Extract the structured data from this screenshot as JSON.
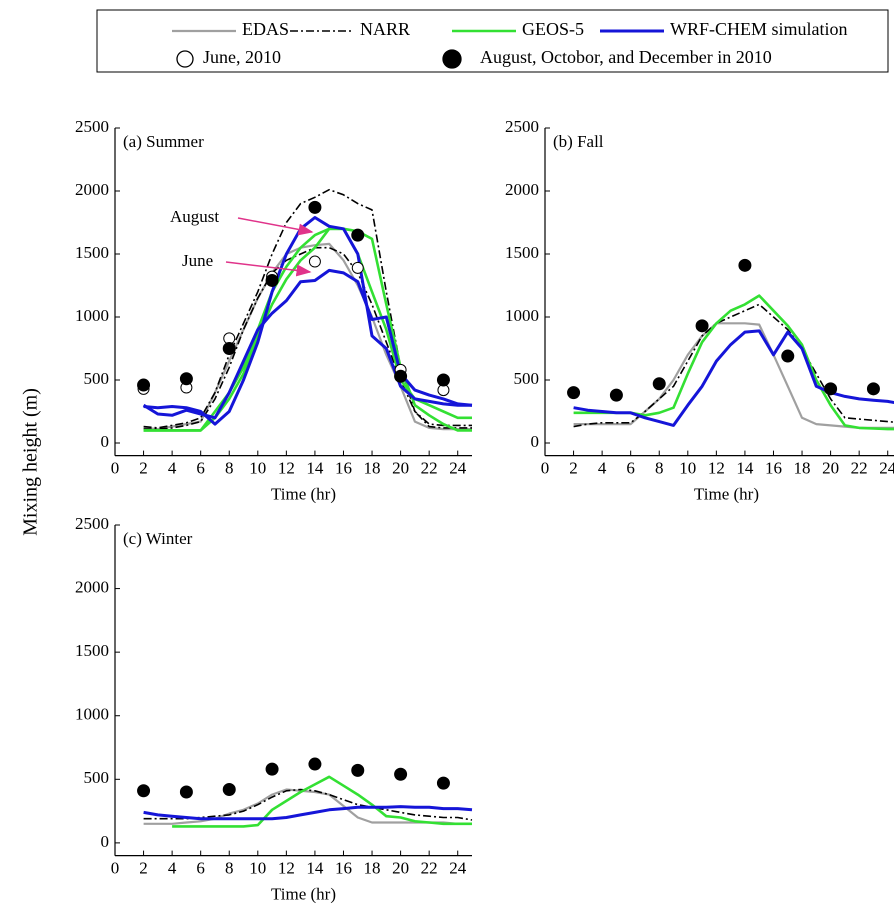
{
  "legend": [
    {
      "name": "EDAS",
      "color": "#a0a0a0",
      "style": "solid"
    },
    {
      "name": "NARR",
      "color": "#000000",
      "style": "dashdot"
    },
    {
      "name": "GEOS-5",
      "color": "#33e033",
      "style": "solid"
    },
    {
      "name": "WRF-CHEM simulation",
      "color": "#1515d8",
      "style": "solid"
    },
    {
      "name": "June, 2010",
      "marker": "open"
    },
    {
      "name": "August, Octobor, and December in 2010",
      "marker": "filled"
    }
  ],
  "ylabel": "Mixing height (m)",
  "chart_data": [
    {
      "type": "line",
      "title": "(a) Summer",
      "xlabel": "Time (hr)",
      "xlim": [
        0,
        25
      ],
      "xticks": [
        0,
        2,
        4,
        6,
        8,
        10,
        12,
        14,
        16,
        18,
        20,
        22,
        24
      ],
      "ylim": [
        -100,
        2500
      ],
      "yticks": [
        0,
        500,
        1000,
        1500,
        2000,
        2500
      ],
      "annotations": [
        {
          "text": "August"
        },
        {
          "text": "June"
        }
      ],
      "series": [
        {
          "name": "EDAS",
          "x": [
            2,
            3,
            4,
            5,
            6,
            7,
            8,
            9,
            10,
            11,
            12,
            13,
            14,
            15,
            16,
            17,
            18,
            19,
            20,
            21,
            22,
            23,
            24,
            25
          ],
          "values": [
            120,
            110,
            130,
            150,
            170,
            400,
            650,
            900,
            1150,
            1350,
            1500,
            1550,
            1570,
            1580,
            1450,
            1250,
            1000,
            700,
            450,
            170,
            120,
            110,
            110,
            110
          ]
        },
        {
          "name": "NARR",
          "x": [
            2,
            3,
            4,
            5,
            6,
            7,
            8,
            9,
            10,
            11,
            12,
            13,
            14,
            15,
            16,
            17,
            18,
            19,
            20,
            21,
            22,
            23,
            24,
            25
          ],
          "values": [
            130,
            120,
            140,
            160,
            200,
            400,
            700,
            950,
            1200,
            1500,
            1750,
            1900,
            1950,
            2010,
            1970,
            1900,
            1850,
            1200,
            600,
            250,
            150,
            140,
            140,
            140
          ]
        },
        {
          "name": "NARR",
          "x": [
            2,
            3,
            4,
            5,
            6,
            7,
            8,
            9,
            10,
            11,
            12,
            13,
            14,
            15,
            16,
            17,
            18,
            19,
            20,
            21,
            22,
            23,
            24,
            25
          ],
          "values": [
            110,
            110,
            120,
            140,
            170,
            350,
            600,
            900,
            1150,
            1350,
            1450,
            1500,
            1550,
            1550,
            1500,
            1350,
            1100,
            800,
            500,
            250,
            130,
            120,
            120,
            120
          ]
        },
        {
          "name": "GEOS-5",
          "x": [
            2,
            3,
            4,
            5,
            6,
            7,
            8,
            9,
            10,
            11,
            12,
            13,
            14,
            15,
            16,
            17,
            18,
            19,
            20,
            21,
            22,
            23,
            24,
            25
          ],
          "values": [
            100,
            100,
            100,
            100,
            100,
            250,
            400,
            600,
            900,
            1200,
            1400,
            1550,
            1650,
            1700,
            1700,
            1680,
            1620,
            1100,
            600,
            300,
            220,
            150,
            100,
            100
          ]
        },
        {
          "name": "GEOS-5",
          "x": [
            2,
            3,
            4,
            5,
            6,
            7,
            8,
            9,
            10,
            11,
            12,
            13,
            14,
            15,
            16,
            17,
            18,
            19,
            20,
            21,
            22,
            23,
            24,
            25
          ],
          "values": [
            100,
            100,
            100,
            100,
            100,
            200,
            350,
            550,
            850,
            1100,
            1300,
            1450,
            1550,
            1700,
            1700,
            1500,
            1200,
            900,
            500,
            350,
            300,
            250,
            200,
            200
          ]
        },
        {
          "name": "WRF-CHEM simulation",
          "x": [
            2,
            3,
            4,
            5,
            6,
            7,
            8,
            9,
            10,
            11,
            12,
            13,
            14,
            15,
            16,
            17,
            18,
            19,
            20,
            21,
            22,
            23,
            24,
            25
          ],
          "values": [
            290,
            280,
            290,
            280,
            250,
            150,
            250,
            500,
            800,
            1200,
            1500,
            1700,
            1790,
            1720,
            1700,
            1500,
            850,
            750,
            450,
            350,
            330,
            310,
            300,
            300
          ]
        },
        {
          "name": "WRF-CHEM simulation",
          "x": [
            2,
            3,
            4,
            5,
            6,
            7,
            8,
            9,
            10,
            11,
            12,
            13,
            14,
            15,
            16,
            17,
            18,
            19,
            20,
            21,
            22,
            23,
            24,
            25
          ],
          "values": [
            300,
            230,
            220,
            260,
            230,
            200,
            400,
            650,
            900,
            1030,
            1130,
            1280,
            1290,
            1370,
            1350,
            1280,
            980,
            1000,
            550,
            420,
            380,
            350,
            310,
            300
          ]
        },
        {
          "name": "June, 2010",
          "x": [
            2,
            5,
            8,
            11,
            14,
            17,
            20,
            23
          ],
          "values": [
            430,
            440,
            830,
            1320,
            1440,
            1390,
            580,
            420
          ]
        },
        {
          "name": "August, Octobor, and December in 2010",
          "x": [
            2,
            5,
            8,
            11,
            14,
            17,
            20,
            23
          ],
          "values": [
            460,
            510,
            750,
            1290,
            1870,
            1650,
            530,
            500
          ]
        }
      ]
    },
    {
      "type": "line",
      "title": "(b) Fall",
      "xlabel": "Time (hr)",
      "xlim": [
        0,
        25
      ],
      "xticks": [
        0,
        2,
        4,
        6,
        8,
        10,
        12,
        14,
        16,
        18,
        20,
        22,
        24
      ],
      "ylim": [
        -100,
        2500
      ],
      "yticks": [
        0,
        500,
        1000,
        1500,
        2000,
        2500
      ],
      "series": [
        {
          "name": "EDAS",
          "x": [
            2,
            3,
            4,
            5,
            6,
            7,
            8,
            9,
            10,
            11,
            12,
            13,
            14,
            15,
            16,
            17,
            18,
            19,
            20,
            21,
            22,
            23,
            24,
            25
          ],
          "values": [
            150,
            150,
            150,
            150,
            150,
            250,
            350,
            500,
            700,
            850,
            950,
            950,
            950,
            940,
            700,
            450,
            200,
            150,
            140,
            130,
            120,
            120,
            120,
            120
          ]
        },
        {
          "name": "NARR",
          "x": [
            2,
            3,
            4,
            5,
            6,
            7,
            8,
            9,
            10,
            11,
            12,
            13,
            14,
            15,
            16,
            17,
            18,
            19,
            20,
            21,
            22,
            23,
            24,
            25
          ],
          "values": [
            130,
            150,
            160,
            160,
            160,
            250,
            350,
            450,
            650,
            850,
            950,
            1000,
            1050,
            1100,
            1000,
            900,
            750,
            550,
            350,
            200,
            190,
            180,
            170,
            160
          ]
        },
        {
          "name": "GEOS-5",
          "x": [
            2,
            3,
            4,
            5,
            6,
            7,
            8,
            9,
            10,
            11,
            12,
            13,
            14,
            15,
            16,
            17,
            18,
            19,
            20,
            21,
            22,
            23,
            24,
            25
          ],
          "values": [
            240,
            240,
            240,
            240,
            240,
            220,
            240,
            280,
            550,
            800,
            950,
            1050,
            1100,
            1170,
            1050,
            930,
            780,
            500,
            300,
            140,
            120,
            115,
            110,
            110
          ]
        },
        {
          "name": "WRF-CHEM simulation",
          "x": [
            2,
            3,
            4,
            5,
            6,
            7,
            8,
            9,
            10,
            11,
            12,
            13,
            14,
            15,
            16,
            17,
            18,
            19,
            20,
            21,
            22,
            23,
            24,
            25
          ],
          "values": [
            280,
            260,
            250,
            240,
            240,
            200,
            170,
            140,
            300,
            450,
            650,
            780,
            880,
            890,
            700,
            880,
            750,
            450,
            400,
            370,
            350,
            340,
            330,
            310
          ]
        },
        {
          "name": "August, Octobor, and December in 2010",
          "x": [
            2,
            5,
            8,
            11,
            14,
            17,
            20,
            23
          ],
          "values": [
            400,
            380,
            470,
            930,
            1410,
            690,
            430,
            430
          ]
        }
      ]
    },
    {
      "type": "line",
      "title": "(c) Winter",
      "xlabel": "Time (hr)",
      "xlim": [
        0,
        25
      ],
      "xticks": [
        0,
        2,
        4,
        6,
        8,
        10,
        12,
        14,
        16,
        18,
        20,
        22,
        24
      ],
      "ylim": [
        -100,
        2500
      ],
      "yticks": [
        0,
        500,
        1000,
        1500,
        2000,
        2500
      ],
      "series": [
        {
          "name": "EDAS",
          "x": [
            2,
            3,
            4,
            5,
            6,
            7,
            8,
            9,
            10,
            11,
            12,
            13,
            14,
            15,
            16,
            17,
            18,
            19,
            20,
            21,
            22,
            23,
            24,
            25
          ],
          "values": [
            150,
            150,
            150,
            160,
            170,
            190,
            230,
            260,
            310,
            380,
            420,
            410,
            400,
            380,
            290,
            200,
            160,
            160,
            160,
            160,
            160,
            160,
            150,
            150
          ]
        },
        {
          "name": "NARR",
          "x": [
            2,
            3,
            4,
            5,
            6,
            7,
            8,
            9,
            10,
            11,
            12,
            13,
            14,
            15,
            16,
            17,
            18,
            19,
            20,
            21,
            22,
            23,
            24,
            25
          ],
          "values": [
            190,
            190,
            190,
            190,
            200,
            210,
            220,
            250,
            300,
            360,
            410,
            420,
            410,
            380,
            340,
            300,
            280,
            260,
            240,
            220,
            210,
            200,
            200,
            180
          ]
        },
        {
          "name": "GEOS-5",
          "x": [
            4,
            5,
            6,
            7,
            8,
            9,
            10,
            11,
            12,
            13,
            14,
            15,
            16,
            17,
            18,
            19,
            20,
            21,
            22,
            23,
            24,
            25
          ],
          "values": [
            130,
            130,
            130,
            130,
            130,
            130,
            140,
            260,
            330,
            400,
            460,
            520,
            450,
            380,
            300,
            210,
            200,
            170,
            160,
            150,
            150,
            150
          ]
        },
        {
          "name": "WRF-CHEM simulation",
          "x": [
            2,
            3,
            4,
            5,
            6,
            7,
            8,
            9,
            10,
            11,
            12,
            13,
            14,
            15,
            16,
            17,
            18,
            19,
            20,
            21,
            22,
            23,
            24,
            25
          ],
          "values": [
            240,
            220,
            210,
            200,
            190,
            190,
            190,
            190,
            190,
            190,
            200,
            220,
            240,
            260,
            270,
            280,
            280,
            280,
            285,
            280,
            280,
            270,
            270,
            260
          ]
        },
        {
          "name": "August, Octobor, and December in 2010",
          "x": [
            2,
            5,
            8,
            11,
            14,
            17,
            20,
            23
          ],
          "values": [
            410,
            400,
            420,
            580,
            620,
            570,
            540,
            470
          ]
        }
      ]
    }
  ]
}
